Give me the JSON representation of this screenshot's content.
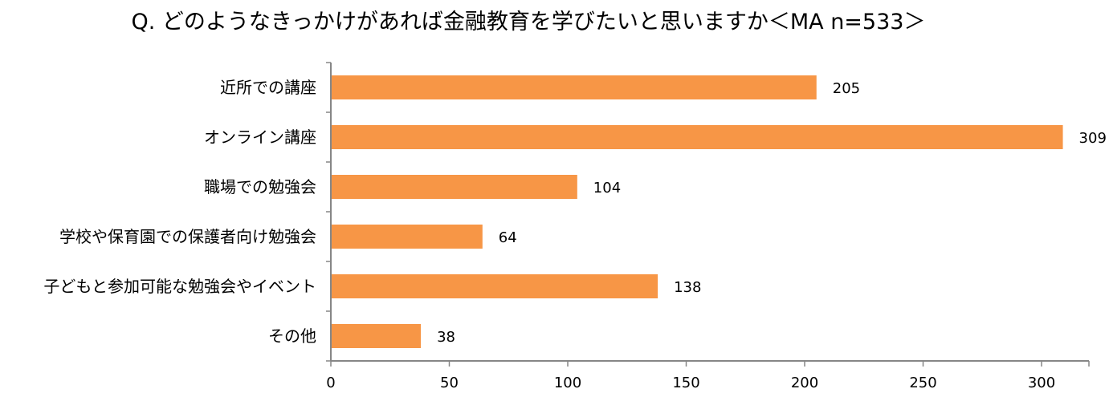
{
  "chart_data": {
    "type": "bar",
    "orientation": "horizontal",
    "title": "Q. どのようなきっかけがあれば金融教育を学びたいと思いますか＜MA n=533＞",
    "categories": [
      "近所での講座",
      "オンライン講座",
      "職場での勉強会",
      "学校や保育園での保護者向け勉強会",
      "子どもと参加可能な勉強会やイベント",
      "その他"
    ],
    "values": [
      205,
      309,
      104,
      64,
      138,
      38
    ],
    "xlim": [
      0,
      320
    ],
    "xticks": [
      0,
      50,
      100,
      150,
      200,
      250,
      300
    ],
    "xlabel": "",
    "ylabel": "",
    "grid": false,
    "legend": "none",
    "colors": {
      "bar": "#F79646",
      "axis": "#868686"
    }
  }
}
